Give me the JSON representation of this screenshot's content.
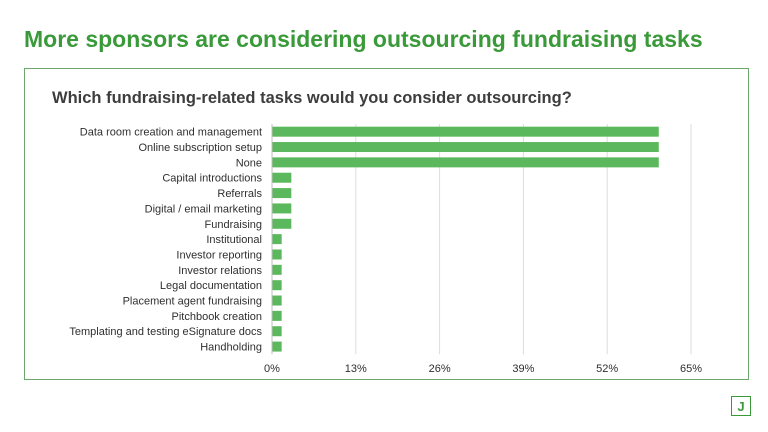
{
  "headline": "More sponsors are considering outsourcing fundraising tasks",
  "brand": {
    "accent": "#3a9a3a",
    "bar_color": "#5cb85c",
    "logo_letter": "J"
  },
  "chart_data": {
    "type": "bar",
    "orientation": "horizontal",
    "title": "Which fundraising-related tasks would you consider outsourcing?",
    "xlabel": "",
    "ylabel": "",
    "categories": [
      "Data room creation and management",
      "Online subscription setup",
      "None",
      "Capital introductions",
      "Referrals",
      "Digital / email marketing",
      "Fundraising",
      "Institutional",
      "Investor reporting",
      "Investor relations",
      "Legal documentation",
      "Placement agent fundraising",
      "Pitchbook creation",
      "Templating and testing eSignature docs",
      "Handholding"
    ],
    "values": [
      60,
      60,
      60,
      3,
      3,
      3,
      3,
      1.5,
      1.5,
      1.5,
      1.5,
      1.5,
      1.5,
      1.5,
      1.5
    ],
    "xticks": [
      0,
      13,
      26,
      39,
      52,
      65
    ],
    "xtick_labels": [
      "0%",
      "13%",
      "26%",
      "39%",
      "52%",
      "65%"
    ],
    "xlim": [
      0,
      65
    ],
    "grid": true,
    "legend": "none"
  }
}
